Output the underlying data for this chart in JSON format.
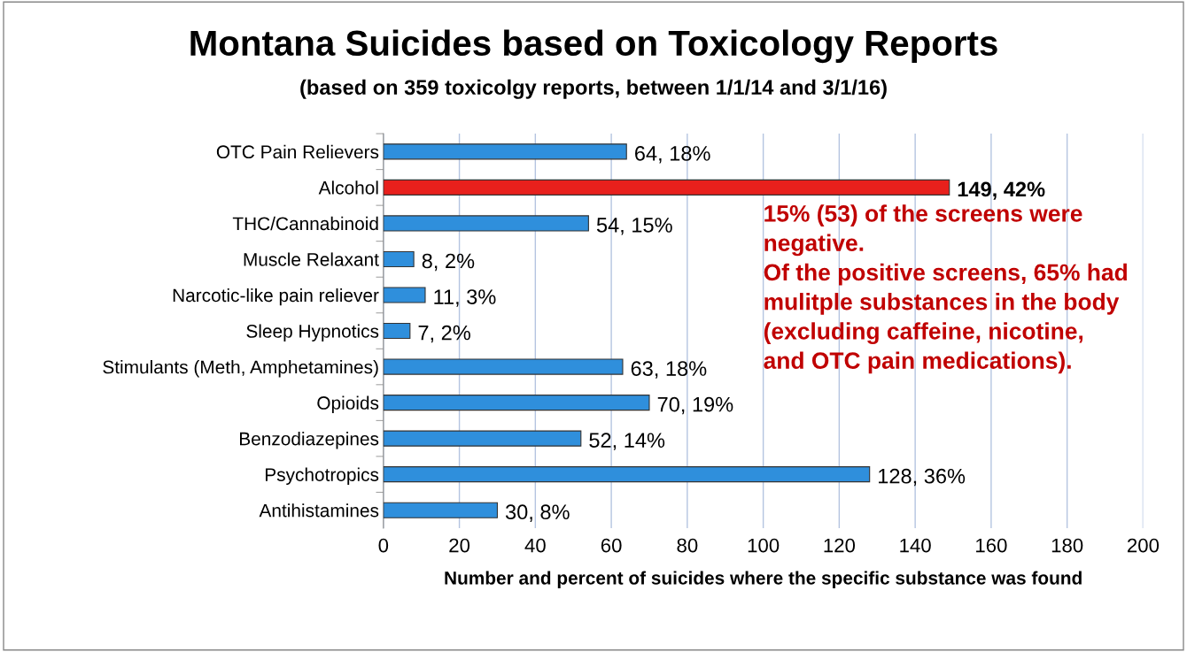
{
  "chart_data": {
    "type": "bar",
    "orientation": "horizontal",
    "title": "Montana Suicides based on Toxicology Reports",
    "subtitle": "(based on 359 toxicolgy reports, between 1/1/14 and 3/1/16)",
    "xlabel": "Number and percent of suicides where the specific substance was found",
    "categories": [
      "OTC Pain Relievers",
      "Alcohol",
      "THC/Cannabinoid",
      "Muscle Relaxant",
      "Narcotic-like pain reliever",
      "Sleep Hypnotics",
      "Stimulants (Meth, Amphetamines)",
      "Opioids",
      "Benzodiazepines",
      "Psychotropics",
      "Antihistamines"
    ],
    "values": [
      64,
      149,
      54,
      8,
      11,
      7,
      63,
      70,
      52,
      128,
      30
    ],
    "colors": [
      "#2f8fdc",
      "#e8201c",
      "#2f8fdc",
      "#2f8fdc",
      "#2f8fdc",
      "#2f8fdc",
      "#2f8fdc",
      "#2f8fdc",
      "#2f8fdc",
      "#2f8fdc",
      "#2f8fdc"
    ],
    "value_labels": [
      "64, 18%",
      "149, 42%",
      "54, 15%",
      "8, 2%",
      "11, 3%",
      "7, 2%",
      "63, 18%",
      "70, 19%",
      "52, 14%",
      "128, 36%",
      "30, 8%"
    ],
    "xlim": [
      0,
      200
    ],
    "xticks": [
      0,
      20,
      40,
      60,
      80,
      100,
      120,
      140,
      160,
      180,
      200
    ],
    "grid": "x",
    "annotations": [
      "15% (53) of the screens were\nnegative.\nOf the positive screens, 65% had\nmulitple substances in the body\n(excluding caffeine, nicotine,\nand OTC pain medications)."
    ]
  }
}
